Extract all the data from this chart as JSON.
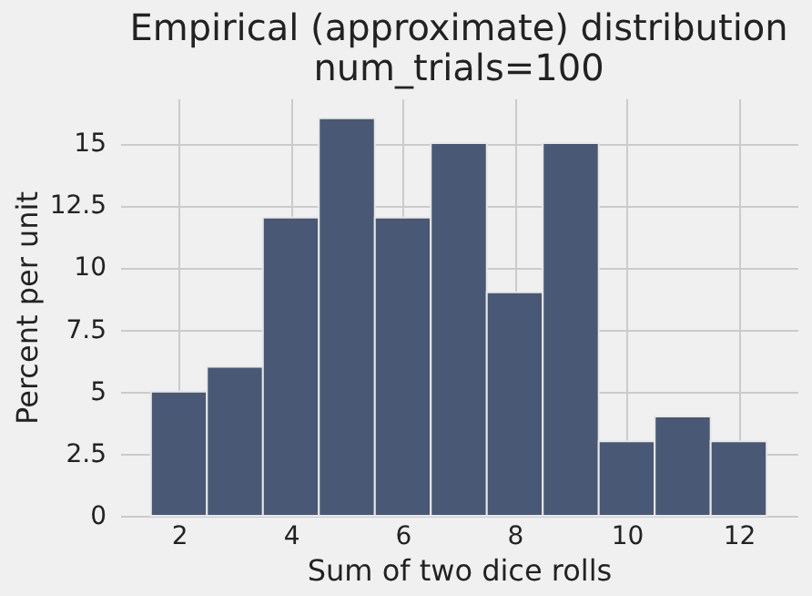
{
  "chart_data": {
    "type": "histogram",
    "title": "Empirical (approximate) distribution",
    "subtitle": "num_trials=100",
    "xlabel": "Sum of two dice rolls",
    "ylabel": "Percent per unit",
    "bins": [
      1.5,
      2.5,
      3.5,
      4.5,
      5.5,
      6.5,
      7.5,
      8.5,
      9.5,
      10.5,
      11.5,
      12.5
    ],
    "values": [
      5,
      6,
      12,
      16,
      12,
      15,
      9,
      15,
      3,
      4,
      3
    ],
    "color": "#485875",
    "xlim": [
      0.95,
      13.05
    ],
    "xticks": [
      2,
      4,
      6,
      8,
      10,
      12
    ],
    "ylim": [
      0,
      16.8
    ],
    "yticks": [
      0,
      2.5,
      5,
      7.5,
      10,
      12.5,
      15
    ],
    "grid": true
  }
}
